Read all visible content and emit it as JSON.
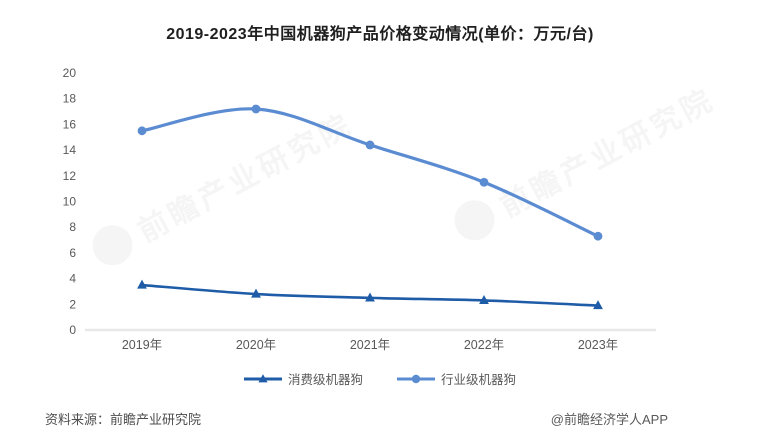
{
  "title": "2019-2023年中国机器狗产品价格变动情况(单价：万元/台)",
  "watermark": {
    "text": "前瞻产业研究院"
  },
  "footer": {
    "source": "资料来源：前瞻产业研究院",
    "credit": "@前瞻经济学人APP"
  },
  "chart_data": {
    "type": "line",
    "title": "2019-2023年中国机器狗产品价格变动情况(单价：万元/台)",
    "categories": [
      "2019年",
      "2020年",
      "2021年",
      "2022年",
      "2023年"
    ],
    "series": [
      {
        "name": "消费级机器狗",
        "values": [
          3.5,
          2.8,
          2.5,
          2.3,
          1.9
        ],
        "color": "#1f5ca8",
        "marker": "triangle"
      },
      {
        "name": "行业级机器狗",
        "values": [
          15.5,
          17.2,
          14.4,
          11.5,
          7.3
        ],
        "color": "#5b8cd2",
        "marker": "circle"
      }
    ],
    "xlabel": "",
    "ylabel": "",
    "ylim": [
      0,
      20
    ],
    "ytick_step": 2,
    "grid": false,
    "legend_position": "bottom",
    "axis_line_color": "#e8e8e8",
    "tick_label_color": "#595959"
  }
}
